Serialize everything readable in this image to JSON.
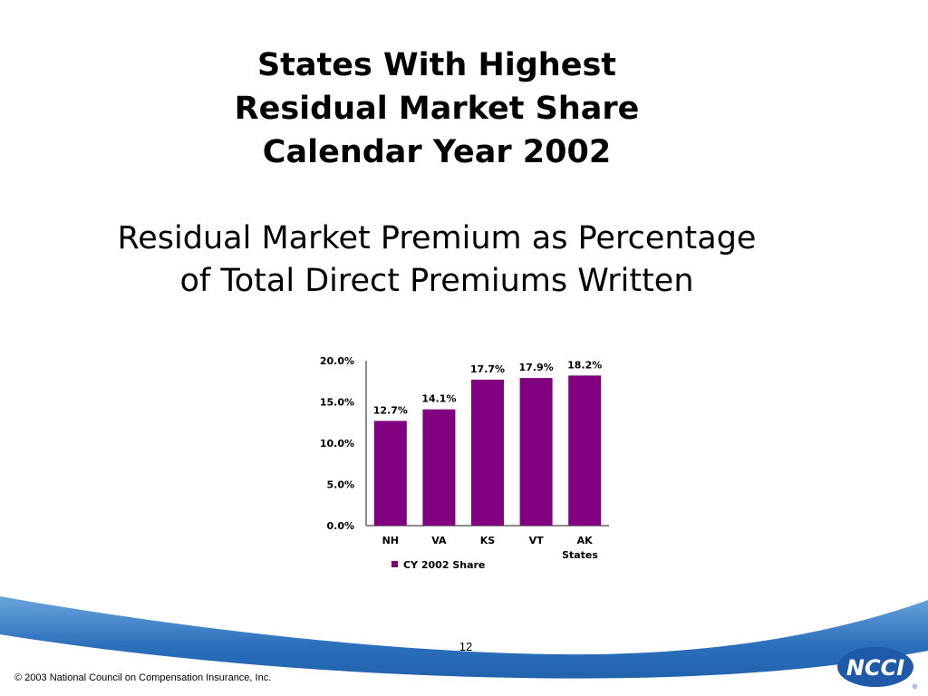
{
  "slide": {
    "title_lines": [
      "States With Highest",
      "Residual Market Share",
      "Calendar Year 2002"
    ],
    "subtitle_lines": [
      "Residual Market Premium as Percentage",
      "of Total Direct Premiums Written"
    ],
    "page_number": "12",
    "copyright": "© 2003 National Council on Compensation Insurance, Inc.",
    "logo_text": "NCCI",
    "logo_mark": "®"
  },
  "colors": {
    "bar": "#800080",
    "footer_blue": "#1f5ea8",
    "footer_light": "#5b9bd5"
  },
  "chart_data": {
    "type": "bar",
    "categories": [
      "NH",
      "VA",
      "KS",
      "VT",
      "AK"
    ],
    "series": [
      {
        "name": "CY 2002 Share",
        "values": [
          12.7,
          14.1,
          17.7,
          17.9,
          18.2
        ]
      }
    ],
    "data_labels": [
      "12.7%",
      "14.1%",
      "17.7%",
      "17.9%",
      "18.2%"
    ],
    "ylim": [
      0,
      20
    ],
    "yticks": [
      0,
      5,
      10,
      15,
      20
    ],
    "ytick_labels": [
      "0.0%",
      "5.0%",
      "10.0%",
      "15.0%",
      "20.0%"
    ],
    "xlabel": "States",
    "ylabel": "",
    "legend_position": "bottom",
    "grid": false
  }
}
